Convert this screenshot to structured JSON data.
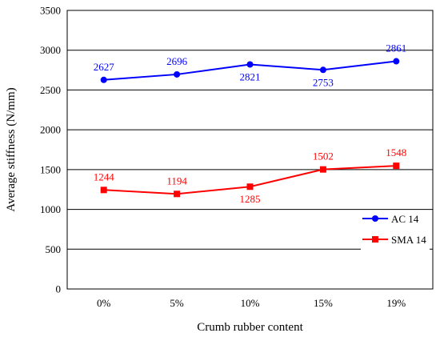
{
  "chart_data": {
    "type": "line",
    "xlabel": "Crumb rubber content",
    "ylabel": "Average stiffness (N/mm)",
    "categories": [
      "0%",
      "5%",
      "10%",
      "15%",
      "19%"
    ],
    "ylim": [
      0,
      3500
    ],
    "yticks": [
      "0",
      "500",
      "1000",
      "1500",
      "2000",
      "2500",
      "3000",
      "3500"
    ],
    "grid": "horizontal",
    "legend_position": "right",
    "series": [
      {
        "name": "AC 14",
        "color": "#0000ff",
        "marker": "circle",
        "values": [
          2627,
          2696,
          2821,
          2753,
          2861
        ],
        "labels": [
          "2627",
          "2696",
          "2821",
          "2753",
          "2861"
        ]
      },
      {
        "name": "SMA 14",
        "color": "#ff0000",
        "marker": "square",
        "values": [
          1244,
          1194,
          1285,
          1502,
          1548
        ],
        "labels": [
          "1244",
          "1194",
          "1285",
          "1502",
          "1548"
        ]
      }
    ]
  }
}
